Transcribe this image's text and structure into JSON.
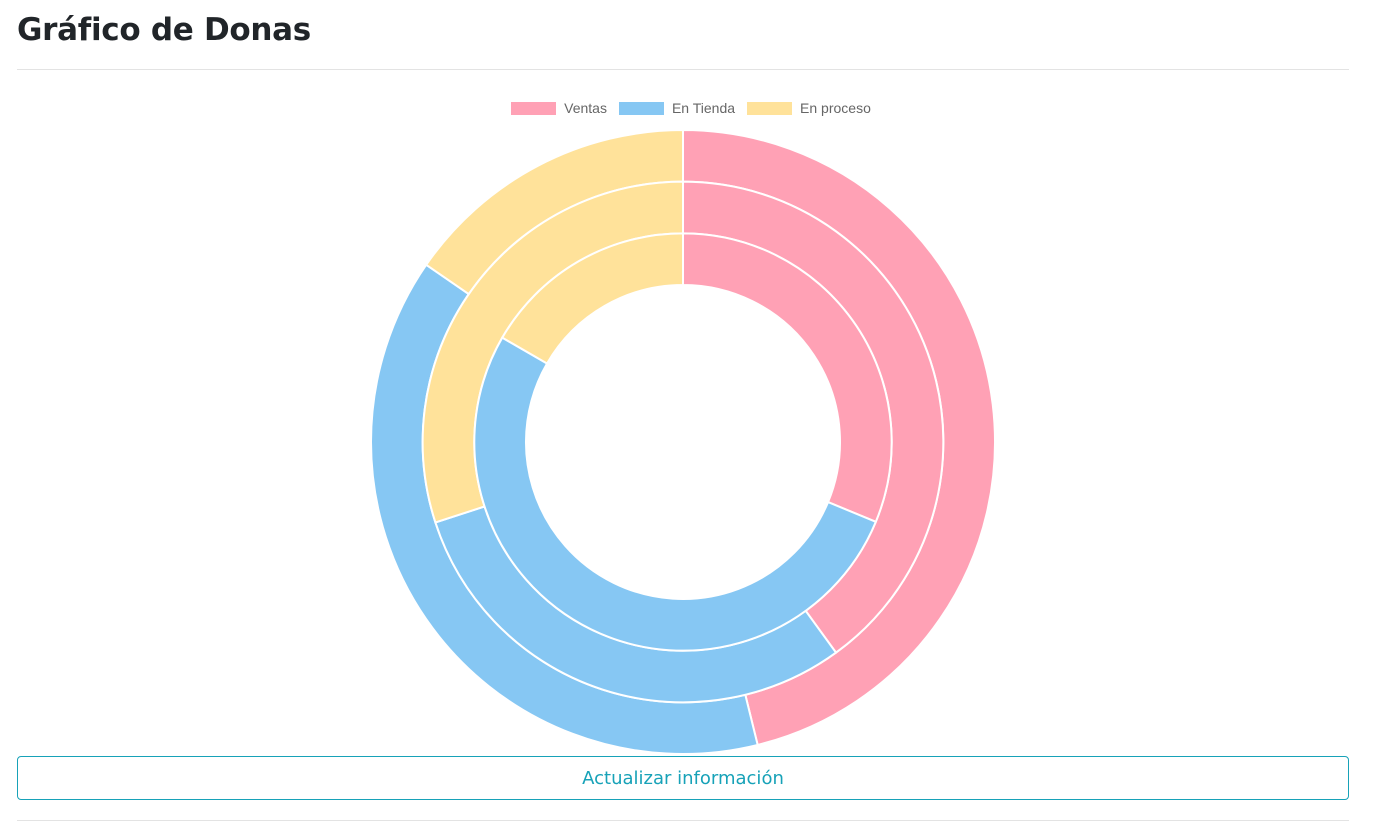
{
  "page": {
    "title": "Gráfico de Donas",
    "refresh_button_label": "Actualizar información"
  },
  "chart_data": {
    "type": "doughnut",
    "categories": [
      "Ventas",
      "En Tienda",
      "En proceso"
    ],
    "colors": [
      "#ffa1b5",
      "#86c7f3",
      "#ffe29a"
    ],
    "border_color": "#ffffff",
    "legend_position": "top",
    "series": [
      {
        "values": [
          300,
          250,
          100
        ]
      },
      {
        "values": [
          200,
          150,
          150
        ]
      },
      {
        "values": [
          150,
          250,
          80
        ]
      }
    ]
  }
}
